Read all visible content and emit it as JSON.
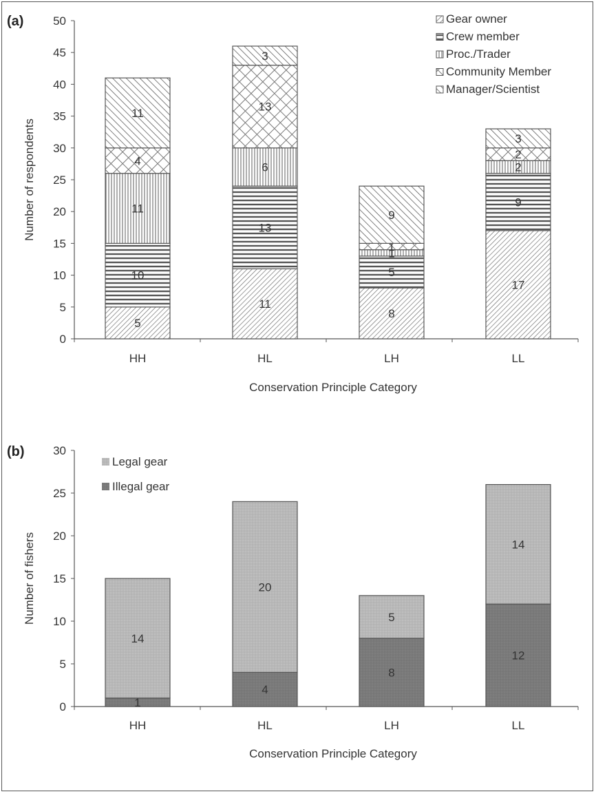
{
  "chart_data": [
    {
      "id": "a",
      "panel_label": "(a)",
      "type": "bar",
      "stacked": true,
      "categories": [
        "HH",
        "HL",
        "LH",
        "LL"
      ],
      "ylabel": "Number of respondents",
      "xlabel": "Conservation Principle Category",
      "ylim": [
        0,
        50
      ],
      "yticks": [
        0,
        5,
        10,
        15,
        20,
        25,
        30,
        35,
        40,
        45,
        50
      ],
      "legend_position": "top-right",
      "series": [
        {
          "name": "Gear owner",
          "pattern": "diag-fine",
          "values": [
            5,
            11,
            8,
            17
          ]
        },
        {
          "name": "Crew member",
          "pattern": "horiz",
          "values": [
            10,
            13,
            5,
            9
          ]
        },
        {
          "name": "Proc./Trader",
          "pattern": "vert",
          "values": [
            11,
            6,
            1,
            2
          ]
        },
        {
          "name": "Community Member",
          "pattern": "cross",
          "values": [
            4,
            13,
            1,
            2
          ]
        },
        {
          "name": "Manager/Scientist",
          "pattern": "diag-wide",
          "values": [
            11,
            3,
            9,
            3
          ]
        }
      ]
    },
    {
      "id": "b",
      "panel_label": "(b)",
      "type": "bar",
      "stacked": true,
      "categories": [
        "HH",
        "HL",
        "LH",
        "LL"
      ],
      "ylabel": "Number of fishers",
      "xlabel": "Conservation Principle Category",
      "ylim": [
        0,
        30
      ],
      "yticks": [
        0,
        5,
        10,
        15,
        20,
        25,
        30
      ],
      "legend_position": "top-left",
      "series": [
        {
          "name": "Illegal gear",
          "color": "#7a7a7a",
          "values": [
            1,
            4,
            8,
            12
          ]
        },
        {
          "name": "Legal gear",
          "color": "#b8b8b8",
          "values": [
            14,
            20,
            5,
            14
          ]
        }
      ],
      "legend_order": [
        "Legal gear",
        "Illegal gear"
      ]
    }
  ]
}
